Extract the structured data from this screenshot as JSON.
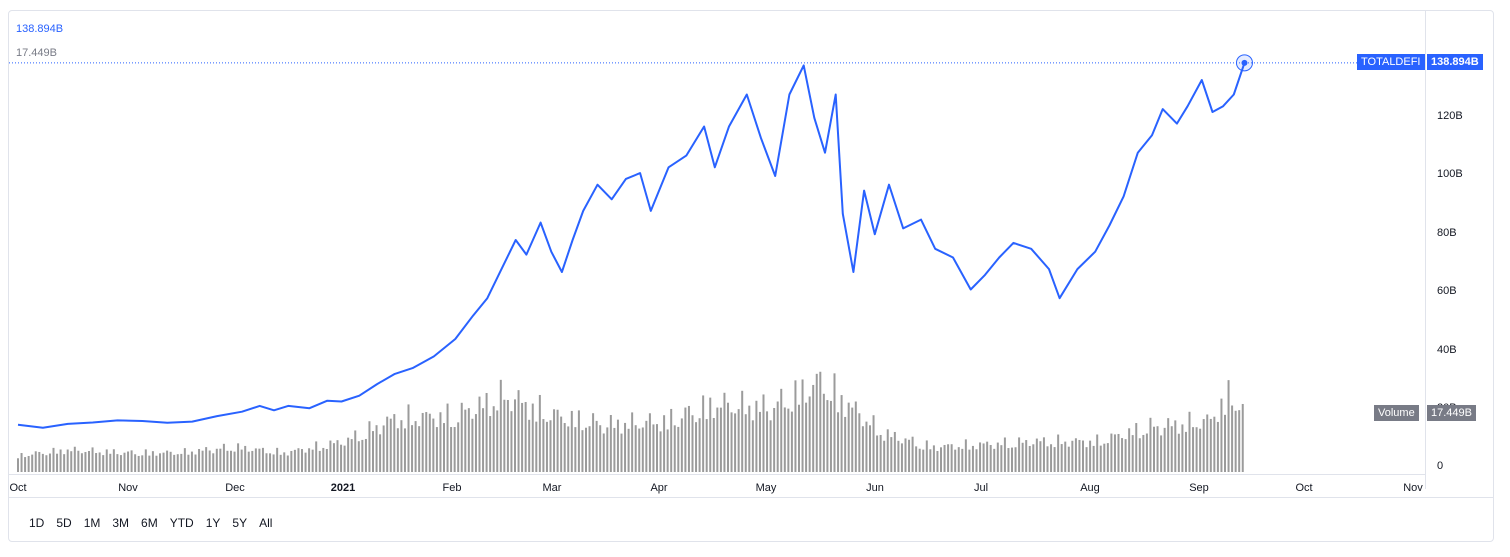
{
  "legend": {
    "price_value": "138.894B",
    "volume_value": "17.449B"
  },
  "price_tag": {
    "name": "TOTALDEFI",
    "value": "138.894B"
  },
  "volume_tag": {
    "name": "Volume",
    "value": "17.449B"
  },
  "ranges": [
    "1D",
    "5D",
    "1M",
    "3M",
    "6M",
    "YTD",
    "1Y",
    "5Y",
    "All"
  ],
  "colors": {
    "line": "#2962ff",
    "volume": "#9b9b9b",
    "grid_dots": "#2962ff"
  },
  "chart_data": {
    "type": "line",
    "series": [
      {
        "name": "TOTALDEFI",
        "unit": "B USD",
        "points": [
          [
            "2020-10-01",
            14.5
          ],
          [
            "2020-10-08",
            13.5
          ],
          [
            "2020-10-15",
            14.8
          ],
          [
            "2020-10-22",
            15.3
          ],
          [
            "2020-10-29",
            16.0
          ],
          [
            "2020-11-05",
            15.8
          ],
          [
            "2020-11-12",
            15.2
          ],
          [
            "2020-11-19",
            15.6
          ],
          [
            "2020-11-26",
            17.5
          ],
          [
            "2020-12-03",
            19.0
          ],
          [
            "2020-12-08",
            21.0
          ],
          [
            "2020-12-12",
            19.5
          ],
          [
            "2020-12-16",
            21.0
          ],
          [
            "2020-12-22",
            20.2
          ],
          [
            "2020-12-27",
            22.8
          ],
          [
            "2020-12-31",
            22.5
          ],
          [
            "2021-01-05",
            24.5
          ],
          [
            "2021-01-10",
            28.5
          ],
          [
            "2021-01-15",
            32.0
          ],
          [
            "2021-01-20",
            34.0
          ],
          [
            "2021-01-26",
            38.0
          ],
          [
            "2021-02-01",
            44.0
          ],
          [
            "2021-02-06",
            52.0
          ],
          [
            "2021-02-10",
            58.0
          ],
          [
            "2021-02-14",
            68.0
          ],
          [
            "2021-02-18",
            78.0
          ],
          [
            "2021-02-21",
            73.0
          ],
          [
            "2021-02-25",
            84.0
          ],
          [
            "2021-02-28",
            74.0
          ],
          [
            "2021-03-03",
            67.0
          ],
          [
            "2021-03-06",
            78.0
          ],
          [
            "2021-03-09",
            88.0
          ],
          [
            "2021-03-13",
            97.0
          ],
          [
            "2021-03-17",
            92.0
          ],
          [
            "2021-03-21",
            99.0
          ],
          [
            "2021-03-25",
            101.0
          ],
          [
            "2021-03-28",
            88.0
          ],
          [
            "2021-04-02",
            103.0
          ],
          [
            "2021-04-07",
            107.0
          ],
          [
            "2021-04-12",
            117.0
          ],
          [
            "2021-04-15",
            103.0
          ],
          [
            "2021-04-19",
            117.0
          ],
          [
            "2021-04-24",
            128.0
          ],
          [
            "2021-04-28",
            113.0
          ],
          [
            "2021-05-02",
            100.0
          ],
          [
            "2021-05-06",
            128.0
          ],
          [
            "2021-05-10",
            138.0
          ],
          [
            "2021-05-13",
            120.0
          ],
          [
            "2021-05-16",
            108.0
          ],
          [
            "2021-05-19",
            128.0
          ],
          [
            "2021-05-21",
            87.0
          ],
          [
            "2021-05-24",
            67.0
          ],
          [
            "2021-05-27",
            95.0
          ],
          [
            "2021-05-30",
            80.0
          ],
          [
            "2021-06-03",
            97.0
          ],
          [
            "2021-06-07",
            82.0
          ],
          [
            "2021-06-12",
            85.0
          ],
          [
            "2021-06-16",
            75.0
          ],
          [
            "2021-06-21",
            72.0
          ],
          [
            "2021-06-26",
            61.0
          ],
          [
            "2021-06-30",
            66.0
          ],
          [
            "2021-07-04",
            72.0
          ],
          [
            "2021-07-08",
            77.0
          ],
          [
            "2021-07-13",
            75.0
          ],
          [
            "2021-07-18",
            68.0
          ],
          [
            "2021-07-21",
            58.0
          ],
          [
            "2021-07-26",
            68.0
          ],
          [
            "2021-07-31",
            74.0
          ],
          [
            "2021-08-04",
            83.0
          ],
          [
            "2021-08-08",
            93.0
          ],
          [
            "2021-08-12",
            108.0
          ],
          [
            "2021-08-16",
            114.0
          ],
          [
            "2021-08-19",
            123.0
          ],
          [
            "2021-08-23",
            118.0
          ],
          [
            "2021-08-26",
            124.0
          ],
          [
            "2021-08-30",
            133.0
          ],
          [
            "2021-09-02",
            122.0
          ],
          [
            "2021-09-05",
            124.0
          ],
          [
            "2021-09-08",
            128.0
          ],
          [
            "2021-09-11",
            138.894
          ]
        ]
      },
      {
        "name": "Volume",
        "unit": "B USD",
        "points": [
          [
            "2020-10-01",
            4
          ],
          [
            "2020-10-15",
            6
          ],
          [
            "2020-11-01",
            5
          ],
          [
            "2020-11-15",
            5
          ],
          [
            "2020-12-01",
            7
          ],
          [
            "2020-12-15",
            5
          ],
          [
            "2021-01-01",
            9
          ],
          [
            "2021-01-15",
            17
          ],
          [
            "2021-02-01",
            18
          ],
          [
            "2021-02-15",
            25
          ],
          [
            "2021-03-01",
            18
          ],
          [
            "2021-03-15",
            15
          ],
          [
            "2021-04-01",
            16
          ],
          [
            "2021-04-15",
            22
          ],
          [
            "2021-05-01",
            21
          ],
          [
            "2021-05-15",
            30
          ],
          [
            "2021-06-01",
            12
          ],
          [
            "2021-06-15",
            7
          ],
          [
            "2021-07-01",
            8
          ],
          [
            "2021-07-15",
            9
          ],
          [
            "2021-08-01",
            9
          ],
          [
            "2021-08-15",
            14
          ],
          [
            "2021-09-01",
            16
          ],
          [
            "2021-09-08",
            27
          ],
          [
            "2021-09-11",
            17.449
          ]
        ]
      }
    ],
    "y_ticks": [
      "120B",
      "100B",
      "80B",
      "60B",
      "40B",
      "20B",
      "0"
    ],
    "x_ticks": [
      "Oct",
      "Nov",
      "Dec",
      "2021",
      "Feb",
      "Mar",
      "Apr",
      "May",
      "Jun",
      "Jul",
      "Aug",
      "Sep",
      "Oct",
      "Nov"
    ],
    "ylim": [
      0,
      138.894
    ],
    "grid": false
  }
}
